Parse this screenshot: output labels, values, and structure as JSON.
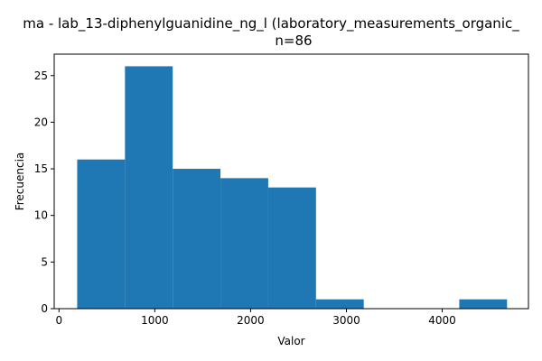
{
  "chart_data": {
    "type": "histogram",
    "title": "ma - lab_13-diphenylguanidine_ng_l (laboratory_measurements_organic_",
    "subtitle": "n=86",
    "xlabel": "Valor",
    "ylabel": "Frecuencia",
    "bin_edges": [
      190,
      688.5,
      1187,
      1685.5,
      2184,
      2682.5,
      3181,
      3679.5,
      4178,
      4676.5
    ],
    "counts": [
      16,
      26,
      15,
      14,
      13,
      1,
      0,
      0,
      1
    ],
    "xlim": [
      -50,
      4900
    ],
    "ylim": [
      0,
      27.3
    ],
    "xticks": [
      0,
      1000,
      2000,
      3000,
      4000
    ],
    "xtick_labels": [
      "0",
      "1000",
      "2000",
      "3000",
      "4000"
    ],
    "yticks": [
      0,
      5,
      10,
      15,
      20,
      25
    ],
    "ytick_labels": [
      "0",
      "5",
      "10",
      "15",
      "20",
      "25"
    ],
    "bar_color": "#1f77b4",
    "grid": false
  }
}
